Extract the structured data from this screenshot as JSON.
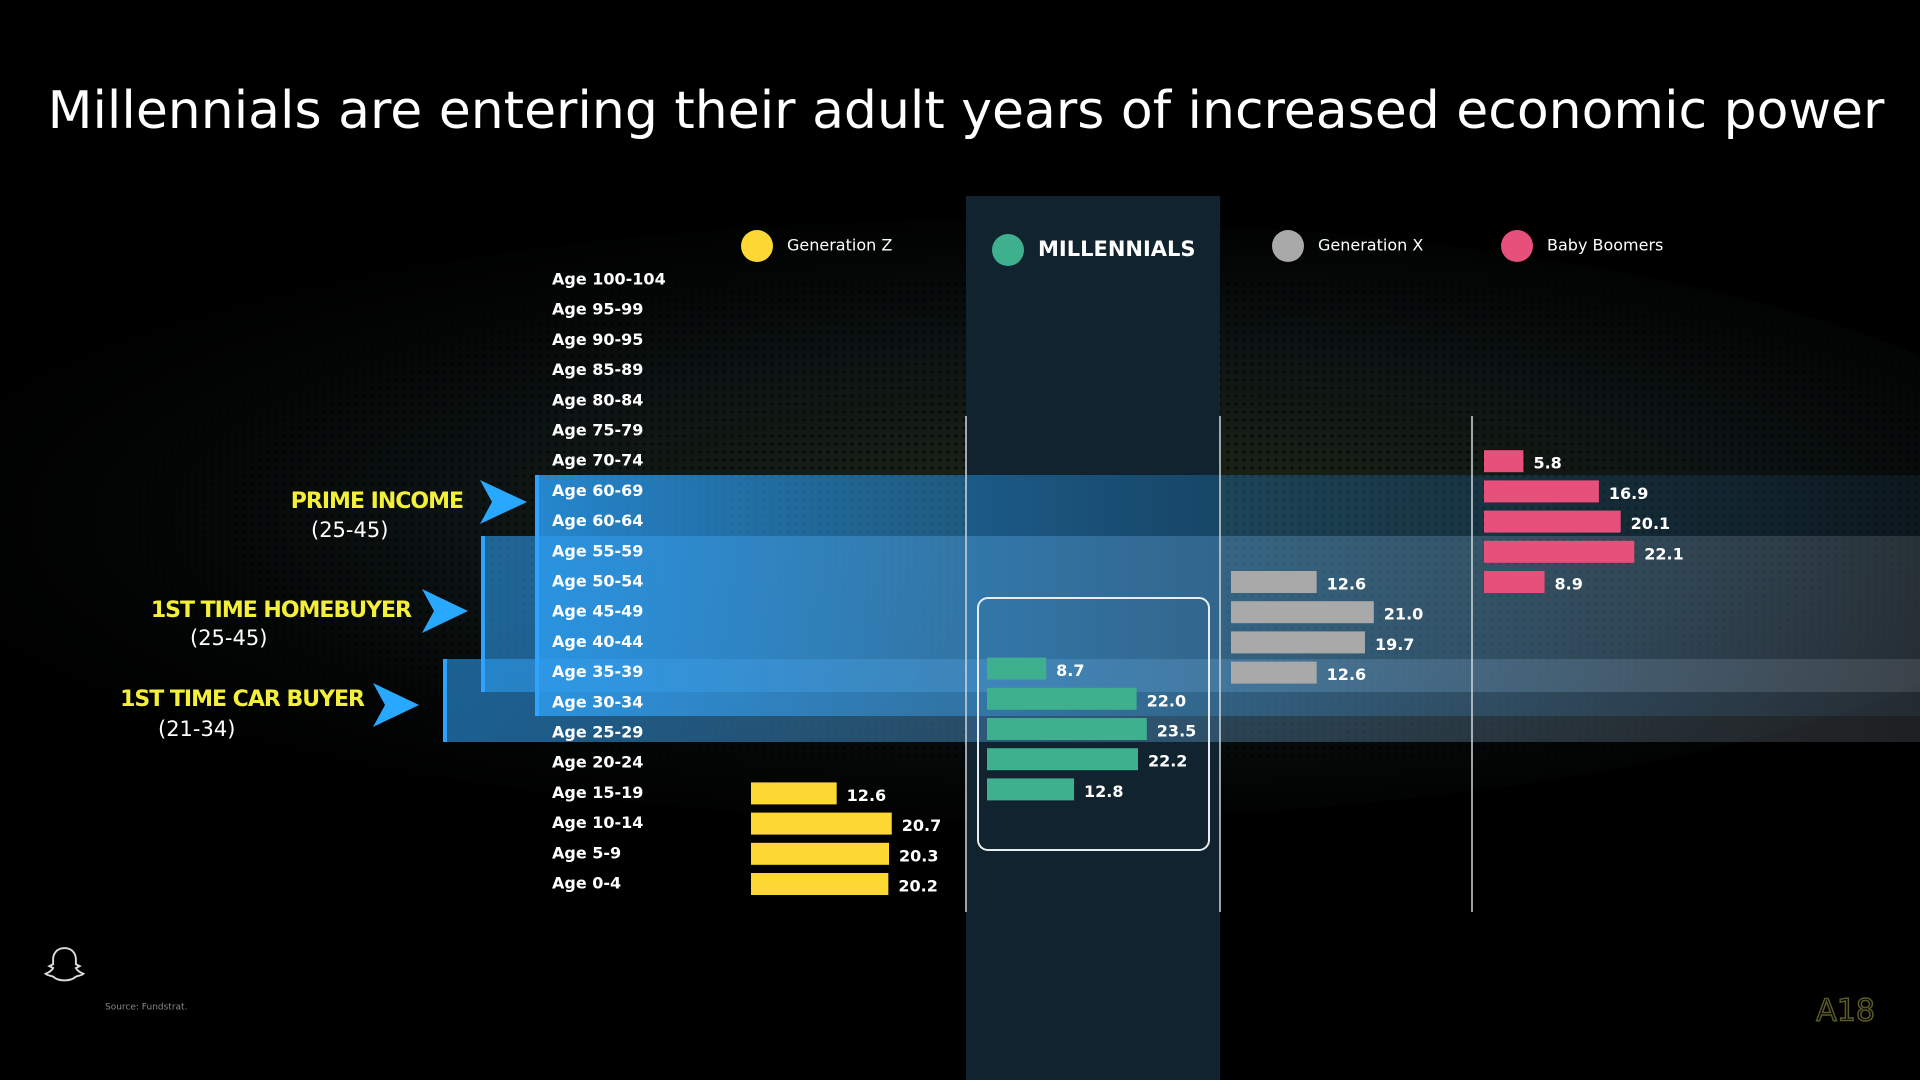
{
  "chart_data": {
    "type": "bar",
    "orientation": "horizontal",
    "title": "Millennials are entering their adult years of increased economic power",
    "categories": [
      "Age 100-104",
      "Age 95-99",
      "Age 90-95",
      "Age 85-89",
      "Age 80-84",
      "Age 75-79",
      "Age 70-74",
      "Age 60-69",
      "Age 60-64",
      "Age 55-59",
      "Age 50-54",
      "Age 45-49",
      "Age 40-44",
      "Age 35-39",
      "Age 30-34",
      "Age 25-29",
      "Age 20-24",
      "Age 15-19",
      "Age 10-14",
      "Age 5-9",
      "Age 0-4"
    ],
    "series": [
      {
        "name": "Generation Z",
        "color": "#fdd835",
        "values": [
          null,
          null,
          null,
          null,
          null,
          null,
          null,
          null,
          null,
          null,
          null,
          null,
          null,
          null,
          null,
          null,
          null,
          12.6,
          20.7,
          20.3,
          20.2
        ],
        "value_labels": [
          null,
          null,
          null,
          null,
          null,
          null,
          null,
          null,
          null,
          null,
          null,
          null,
          null,
          null,
          null,
          null,
          null,
          "12.6",
          "20.7",
          "20.3",
          "20.2"
        ]
      },
      {
        "name": "MILLENNIALS",
        "color": "#3fb08e",
        "values": [
          null,
          null,
          null,
          null,
          null,
          null,
          null,
          null,
          null,
          null,
          null,
          null,
          null,
          8.7,
          22.0,
          23.5,
          22.2,
          12.8,
          null,
          null,
          null
        ],
        "value_labels": [
          null,
          null,
          null,
          null,
          null,
          null,
          null,
          null,
          null,
          null,
          null,
          null,
          null,
          "8.7",
          "22.0",
          "23.5",
          "22.2",
          "12.8",
          null,
          null,
          null
        ]
      },
      {
        "name": "Generation X",
        "color": "#a9a9a9",
        "values": [
          null,
          null,
          null,
          null,
          null,
          null,
          null,
          null,
          null,
          null,
          12.6,
          21.0,
          19.7,
          12.6,
          null,
          null,
          null,
          null,
          null,
          null,
          null
        ],
        "value_labels": [
          null,
          null,
          null,
          null,
          null,
          null,
          null,
          null,
          null,
          null,
          "12.6",
          "21.0",
          "19.7",
          "12.6",
          null,
          null,
          null,
          null,
          null,
          null,
          null
        ]
      },
      {
        "name": "Baby Boomers",
        "color": "#e8507c",
        "values": [
          null,
          null,
          null,
          null,
          null,
          null,
          5.8,
          16.9,
          20.1,
          22.1,
          8.9,
          null,
          null,
          null,
          null,
          null,
          null,
          null,
          null,
          null,
          null
        ],
        "value_labels": [
          null,
          null,
          null,
          null,
          null,
          null,
          "5.8",
          "16.9",
          "20.1",
          "22.1",
          "8.9",
          null,
          null,
          null,
          null,
          null,
          null,
          null,
          null,
          null,
          null
        ]
      }
    ],
    "annotations": [
      {
        "label": "PRIME INCOME",
        "range": "(25-45)"
      },
      {
        "label": "1ST TIME HOMEBUYER",
        "range": "(25-45)"
      },
      {
        "label": "1ST TIME CAR BUYER",
        "range": "(21-34)"
      }
    ]
  },
  "footer": {
    "source": "Source: Fundstrat.",
    "slide_number": "A18"
  }
}
